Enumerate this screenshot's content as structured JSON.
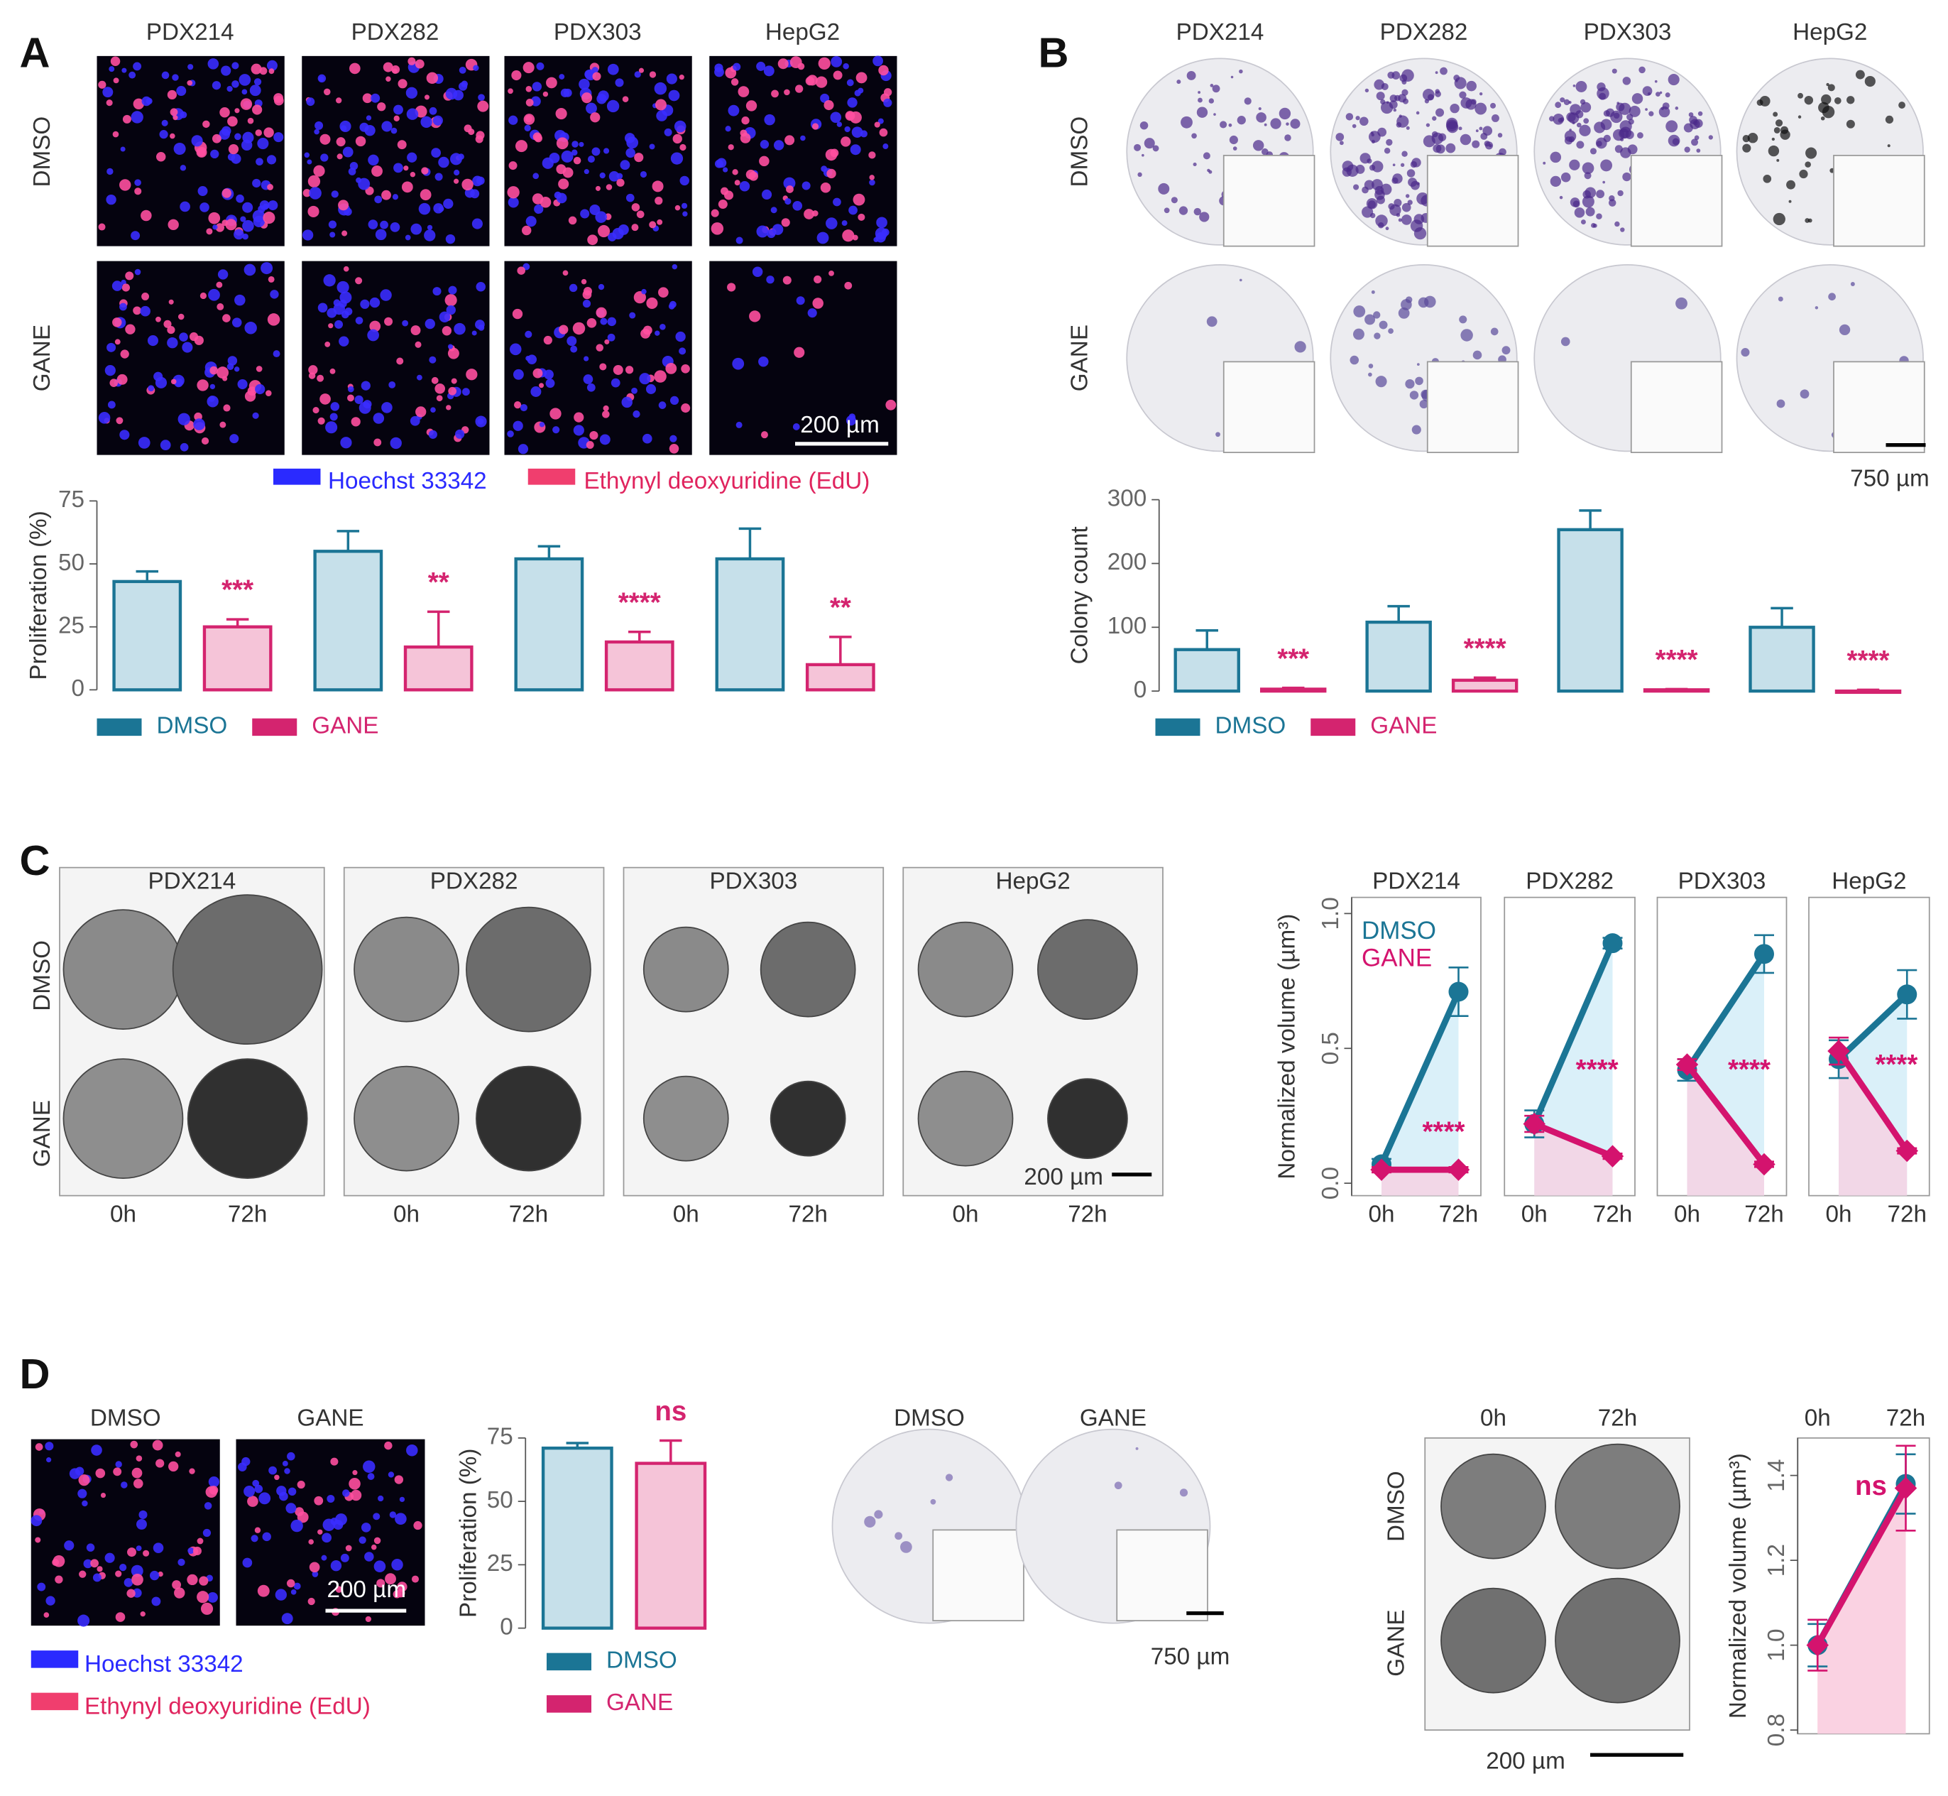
{
  "figure": {
    "panels": [
      "A",
      "B",
      "C",
      "D"
    ],
    "a": {
      "columns": [
        "PDX214",
        "PDX282",
        "PDX303",
        "HepG2"
      ],
      "rows": [
        "DMSO",
        "GANE"
      ],
      "scale": "200 µm",
      "stains": [
        "Hoechst 33342",
        "Ethynyl deoxyuridine (EdU)"
      ]
    },
    "b": {
      "columns": [
        "PDX214",
        "PDX282",
        "PDX303",
        "HepG2"
      ],
      "rows": [
        "DMSO",
        "GANE"
      ],
      "scale": "750 µm"
    },
    "c": {
      "columns": [
        "PDX214",
        "PDX282",
        "PDX303",
        "HepG2"
      ],
      "rows": [
        "DMSO",
        "GANE"
      ],
      "times": [
        "0h",
        "72h",
        "0h",
        "72h",
        "0h",
        "72h",
        "0h",
        "72h"
      ],
      "scale": "200 µm"
    },
    "d": {
      "imaging": {
        "columns": [
          "DMSO",
          "GANE"
        ],
        "scale": "200 µm",
        "stains": [
          "Hoechst 33342",
          "Ethynyl deoxyuridine (EdU)"
        ]
      },
      "colonies": {
        "columns": [
          "DMSO",
          "GANE"
        ],
        "scale": "750 µm"
      },
      "spheroids": {
        "columns": [
          "0h",
          "72h"
        ],
        "rows": [
          "DMSO",
          "GANE"
        ],
        "scale": "200 µm"
      }
    }
  },
  "chart_data": [
    {
      "type": "bar",
      "ylabel": "Proliferation (%)",
      "categories": [
        null,
        null,
        null,
        null
      ],
      "ylim": [
        0,
        75
      ],
      "yticks": [
        0,
        25,
        50,
        75
      ],
      "series": [
        {
          "name": "DMSO",
          "color": "#1b7595",
          "fill": "#c6e0ea",
          "values": [
            43,
            55,
            52,
            52
          ],
          "errors": [
            4,
            8,
            5,
            12
          ]
        },
        {
          "name": "GANE",
          "color": "#d4246f",
          "fill": "#f5c4d8",
          "values": [
            25,
            17,
            19,
            10
          ],
          "errors": [
            3,
            14,
            4,
            11
          ]
        }
      ],
      "annotations": [
        "***",
        "**",
        "****",
        "**"
      ]
    },
    {
      "type": "bar",
      "ylabel": "Colony count",
      "categories": [
        null,
        null,
        null,
        null
      ],
      "ylim": [
        0,
        300
      ],
      "yticks": [
        0,
        100,
        200,
        300
      ],
      "series": [
        {
          "name": "DMSO",
          "color": "#1b7595",
          "fill": "#c6e0ea",
          "values": [
            65,
            108,
            253,
            100
          ],
          "errors": [
            30,
            25,
            30,
            30
          ]
        },
        {
          "name": "GANE",
          "color": "#d4246f",
          "fill": "#f5c4d8",
          "values": [
            3,
            17,
            2,
            0
          ],
          "errors": [
            2,
            4,
            1,
            2
          ]
        }
      ],
      "annotations": [
        "***",
        "****",
        "****",
        "****"
      ]
    },
    {
      "type": "line",
      "title": "PDX214",
      "categories": [
        "0h",
        "72h"
      ],
      "ylim": [
        0,
        1.0
      ],
      "yticks": [
        {
          "value": 0,
          "label": "0.0"
        },
        {
          "value": 0.5,
          "label": "0.5"
        },
        {
          "value": 1,
          "label": "1.0"
        }
      ],
      "ylabel": "Normalized volume (µm³)",
      "series": [
        {
          "name": "DMSO",
          "color": "#1b7595",
          "fill": "#cdebf7",
          "values": [
            0.07,
            0.71
          ],
          "errors": [
            0.02,
            0.09
          ]
        },
        {
          "name": "GANE",
          "color": "#d4136e",
          "fill": "#f9cfe0",
          "values": [
            0.05,
            0.05
          ],
          "errors": [
            0.01,
            0.01
          ]
        }
      ],
      "annotation": "****"
    },
    {
      "type": "line",
      "title": "PDX282",
      "categories": [
        "0h",
        "72h"
      ],
      "ylim": [
        0,
        1.0
      ],
      "series": [
        {
          "color": "#1b7595",
          "fill": "#cdebf7",
          "values": [
            0.22,
            0.89
          ],
          "errors": [
            0.05,
            0.02
          ]
        },
        {
          "color": "#d4136e",
          "fill": "#f9cfe0",
          "values": [
            0.22,
            0.1
          ],
          "errors": [
            0.03,
            0.01
          ]
        }
      ],
      "annotation": "****"
    },
    {
      "type": "line",
      "title": "PDX303",
      "categories": [
        "0h",
        "72h"
      ],
      "ylim": [
        0,
        1.0
      ],
      "series": [
        {
          "color": "#1b7595",
          "fill": "#cdebf7",
          "values": [
            0.42,
            0.85
          ],
          "errors": [
            0.04,
            0.07
          ]
        },
        {
          "color": "#d4136e",
          "fill": "#f9cfe0",
          "values": [
            0.44,
            0.07
          ],
          "errors": [
            0.02,
            0.01
          ]
        }
      ],
      "annotation": "****"
    },
    {
      "type": "line",
      "title": "HepG2",
      "categories": [
        "0h",
        "72h"
      ],
      "ylim": [
        0,
        1.0
      ],
      "series": [
        {
          "color": "#1b7595",
          "fill": "#cdebf7",
          "values": [
            0.46,
            0.7
          ],
          "errors": [
            0.07,
            0.09
          ]
        },
        {
          "color": "#d4136e",
          "fill": "#f9cfe0",
          "values": [
            0.49,
            0.12
          ],
          "errors": [
            0.05,
            0.01
          ]
        }
      ],
      "annotation": "****"
    },
    {
      "type": "bar",
      "ylabel": "Proliferation (%)",
      "categories": [
        null
      ],
      "ylim": [
        0,
        75
      ],
      "yticks": [
        0,
        25,
        50,
        75
      ],
      "series": [
        {
          "name": "DMSO",
          "color": "#1b7595",
          "fill": "#c6e0ea",
          "values": [
            71
          ],
          "errors": [
            2
          ]
        },
        {
          "name": "GANE",
          "color": "#d4246f",
          "fill": "#f5c4d8",
          "values": [
            65
          ],
          "errors": [
            9
          ]
        }
      ],
      "annotations": [
        "ns"
      ]
    },
    {
      "type": "line",
      "categories": [
        "0h",
        "72h"
      ],
      "ylim": [
        0.8,
        1.5
      ],
      "yticks": [
        {
          "value": 0.8,
          "label": "0.8"
        },
        {
          "value": 1.0,
          "label": "1.0"
        },
        {
          "value": 1.2,
          "label": "1.2"
        },
        {
          "value": 1.4,
          "label": "1.4"
        }
      ],
      "ylabel": "Normalized volume (µm³)",
      "series": [
        {
          "color": "#1b7595",
          "fill": "#f9cfe0",
          "values": [
            1.0,
            1.38
          ],
          "errors": [
            0.05,
            0.07
          ]
        },
        {
          "color": "#d4136e",
          "fill": "#f9cfe0",
          "values": [
            1.0,
            1.37
          ],
          "errors": [
            0.06,
            0.1
          ]
        }
      ],
      "annotation": "ns"
    }
  ]
}
